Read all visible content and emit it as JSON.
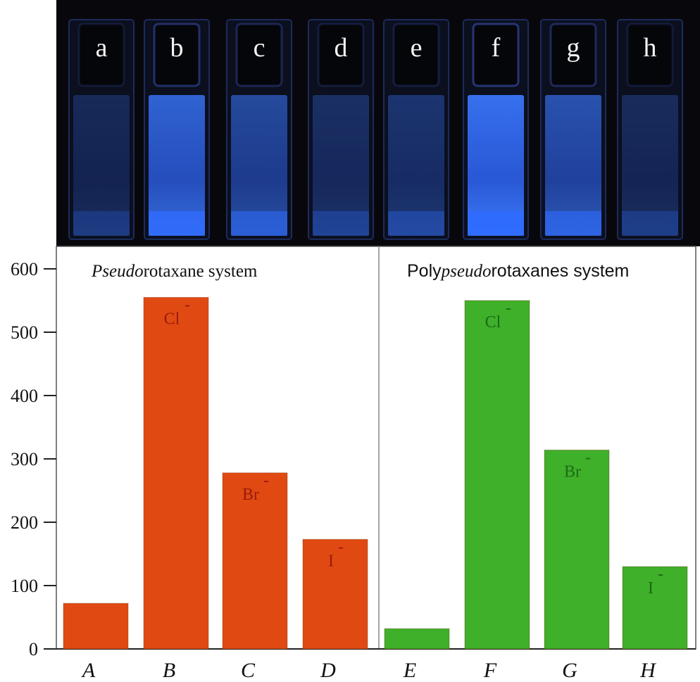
{
  "photo": {
    "vials": [
      {
        "letter": "a",
        "glow": 0.18
      },
      {
        "letter": "b",
        "glow": 0.85
      },
      {
        "letter": "c",
        "glow": 0.55
      },
      {
        "letter": "d",
        "glow": 0.25
      },
      {
        "letter": "e",
        "glow": 0.3
      },
      {
        "letter": "f",
        "glow": 1.0
      },
      {
        "letter": "g",
        "glow": 0.65
      },
      {
        "letter": "h",
        "glow": 0.2
      }
    ],
    "glow_color": "#2f6bff"
  },
  "chart_data": {
    "type": "bar",
    "categories": [
      "A",
      "B",
      "C",
      "D",
      "E",
      "F",
      "G",
      "H"
    ],
    "values": [
      72,
      555,
      278,
      173,
      32,
      550,
      314,
      130
    ],
    "ion_labels": [
      "",
      "Cl",
      "Br",
      "I",
      "",
      "Cl",
      "Br",
      "I"
    ],
    "ion_charge": "-",
    "bar_colors": [
      "#e04a12",
      "#e04a12",
      "#e04a12",
      "#e04a12",
      "#3fb02a",
      "#3fb02a",
      "#3fb02a",
      "#3fb02a"
    ],
    "ion_label_color_red": "#9b1a0c",
    "ion_label_color_green": "#1c6a14",
    "groups": [
      {
        "title_italic": "Pseudo",
        "title_rest": "rotaxane system"
      },
      {
        "title_prefix": "Poly",
        "title_italic": "pseudo",
        "title_rest": "rotaxanes system"
      }
    ],
    "yticks": [
      0,
      100,
      200,
      300,
      400,
      500,
      600
    ],
    "ylim": [
      0,
      600
    ]
  }
}
